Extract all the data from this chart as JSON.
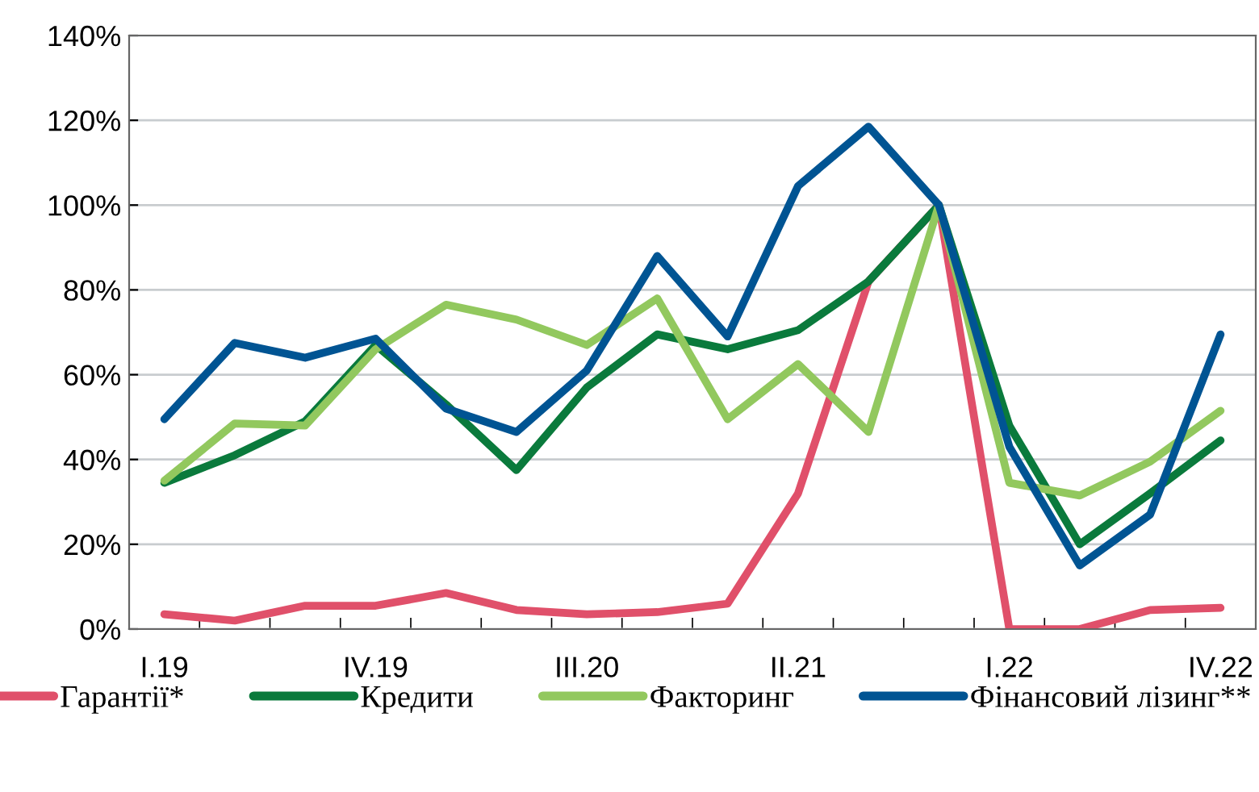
{
  "chart_data": {
    "type": "line",
    "categories": [
      "I.19",
      null,
      null,
      "IV.19",
      null,
      null,
      "III.20",
      null,
      null,
      "II.21",
      null,
      null,
      "I.22",
      null,
      null,
      "IV.22"
    ],
    "series": [
      {
        "name": "Гарантії*",
        "color": "#e0506a",
        "values": [
          3.5,
          2,
          5.5,
          5.5,
          8.5,
          4.5,
          3.5,
          4,
          6,
          32,
          82,
          100,
          0,
          0,
          4.5,
          5
        ]
      },
      {
        "name": "Кредити",
        "color": "#0a7a3c",
        "values": [
          34.5,
          41,
          49,
          67,
          53,
          37.5,
          57,
          69.5,
          66,
          70.5,
          82,
          100,
          48,
          20,
          32,
          44.5
        ]
      },
      {
        "name": "Факторинг",
        "color": "#92c85e",
        "values": [
          35,
          48.5,
          48,
          66,
          76.5,
          73,
          67,
          78,
          49.5,
          62.5,
          46.5,
          100,
          34.5,
          31.5,
          39.5,
          51.5
        ]
      },
      {
        "name": "Фінансовий лізинг**",
        "color": "#005493",
        "values": [
          49.5,
          67.5,
          64,
          68.5,
          52,
          46.5,
          61,
          88,
          69,
          104.5,
          118.5,
          100,
          43,
          15,
          27,
          69.5
        ]
      }
    ],
    "ylim": [
      0,
      140
    ],
    "yticks": [
      {
        "value": 0,
        "label": "0%"
      },
      {
        "value": 20,
        "label": "20%"
      },
      {
        "value": 40,
        "label": "40%"
      },
      {
        "value": 60,
        "label": "60%"
      },
      {
        "value": 80,
        "label": "80%"
      },
      {
        "value": 100,
        "label": "100%"
      },
      {
        "value": 120,
        "label": "120%"
      },
      {
        "value": 140,
        "label": "140%"
      }
    ],
    "grid": "y",
    "legend": "bottom",
    "marker": "none",
    "line_style": "solid"
  }
}
